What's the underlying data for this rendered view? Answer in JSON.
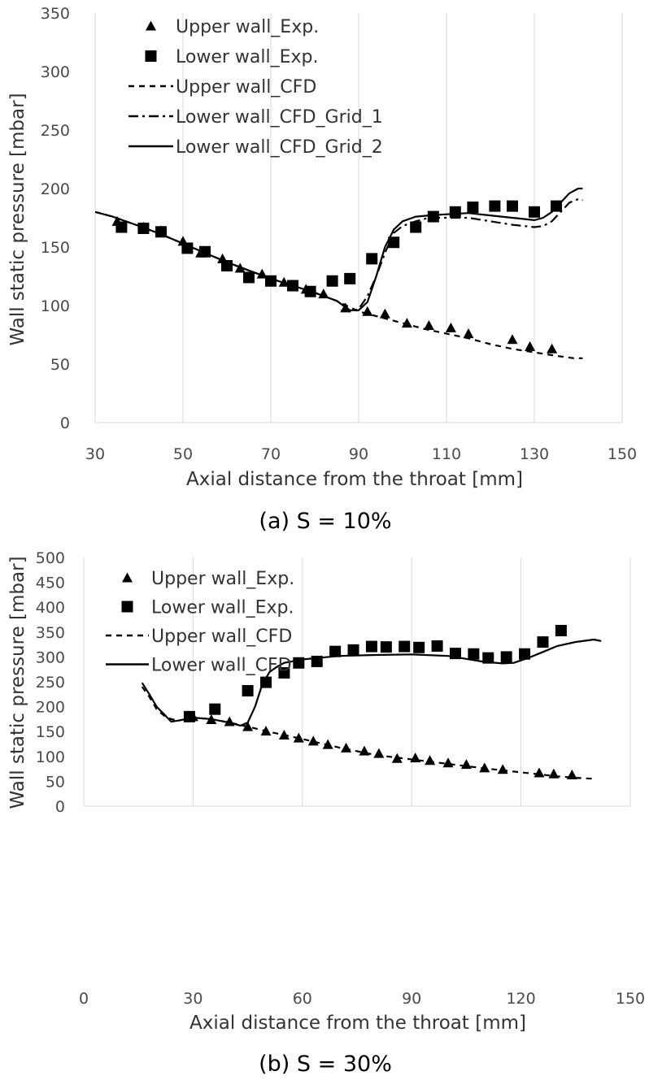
{
  "chart_data": [
    {
      "type": "scatter",
      "caption": "(a) S = 10%",
      "xlabel": "Axial distance from the throat [mm]",
      "ylabel": "Wall static pressure [mbar]",
      "xlim": [
        30,
        150
      ],
      "ylim": [
        0,
        350
      ],
      "xticks": [
        30,
        50,
        70,
        90,
        110,
        130,
        150
      ],
      "yticks": [
        0,
        50,
        100,
        150,
        200,
        250,
        300,
        350
      ],
      "grid": "vertical",
      "legend": "top-left",
      "series": [
        {
          "name": "Upper wall_Exp.",
          "style": "triangle",
          "color": "#000000",
          "x": [
            35,
            41,
            45,
            50,
            54,
            59,
            63,
            68,
            73,
            78,
            82,
            87,
            92,
            96,
            101,
            106,
            111,
            115,
            125,
            129,
            134
          ],
          "y": [
            172,
            167,
            164,
            155,
            145,
            140,
            132,
            127,
            120,
            114,
            110,
            98,
            95,
            93,
            85,
            83,
            81,
            76,
            71,
            65,
            63
          ]
        },
        {
          "name": "Lower wall_Exp.",
          "style": "square",
          "color": "#000000",
          "x": [
            36,
            41,
            45,
            51,
            55,
            60,
            65,
            70,
            75,
            79,
            84,
            88,
            93,
            98,
            103,
            107,
            112,
            116,
            121,
            125,
            130,
            135
          ],
          "y": [
            167,
            166,
            163,
            149,
            146,
            134,
            124,
            121,
            117,
            112,
            121,
            123,
            140,
            154,
            167,
            176,
            180,
            184,
            185,
            185,
            180,
            185
          ]
        },
        {
          "name": "Upper wall_CFD",
          "style": "dashed",
          "color": "#000000",
          "x": [
            30,
            34,
            40,
            45,
            50,
            55,
            60,
            65,
            70,
            75,
            80,
            85,
            90,
            95,
            100,
            105,
            110,
            115,
            120,
            125,
            130,
            135,
            139,
            141
          ],
          "y": [
            180,
            176,
            168,
            161,
            153,
            145,
            137,
            130,
            123,
            117,
            111,
            104,
            95,
            90,
            85,
            80,
            76,
            72,
            67,
            63,
            60,
            57,
            55,
            55
          ]
        },
        {
          "name": "Lower wall_CFD_Grid_1",
          "style": "dashdot",
          "color": "#000000",
          "x": [
            86,
            88,
            90,
            92,
            94,
            96,
            98,
            100,
            103,
            106,
            110,
            115,
            120,
            125,
            130,
            132,
            134,
            136,
            138,
            140,
            141
          ],
          "y": [
            96,
            95,
            97,
            108,
            125,
            145,
            162,
            168,
            172,
            175,
            175,
            175,
            172,
            169,
            167,
            168,
            172,
            180,
            188,
            191,
            190
          ]
        },
        {
          "name": "Lower wall_CFD_Grid_2",
          "style": "solid",
          "color": "#000000",
          "x": [
            30,
            34,
            40,
            45,
            50,
            55,
            60,
            65,
            70,
            75,
            80,
            85,
            88,
            90,
            92,
            94,
            96,
            98,
            100,
            103,
            106,
            110,
            115,
            120,
            125,
            130,
            132,
            134,
            136,
            138,
            140,
            141
          ],
          "y": [
            180,
            176,
            168,
            161,
            153,
            145,
            137,
            130,
            123,
            117,
            111,
            104,
            96,
            96,
            103,
            125,
            150,
            165,
            172,
            176,
            177,
            178,
            179,
            177,
            175,
            173,
            175,
            180,
            188,
            196,
            200,
            200
          ]
        }
      ]
    },
    {
      "type": "scatter",
      "caption": "(b) S = 30%",
      "xlabel": "Axial distance from the throat [mm]",
      "ylabel": "Wall static pressure [mbar]",
      "xlim": [
        0,
        150
      ],
      "ylim": [
        0,
        500
      ],
      "xticks": [
        0,
        30,
        60,
        90,
        120,
        150
      ],
      "yticks": [
        0,
        50,
        100,
        150,
        200,
        250,
        300,
        350,
        400,
        450,
        500
      ],
      "grid": "vertical",
      "legend": "top-left",
      "series": [
        {
          "name": "Upper wall_Exp.",
          "style": "triangle",
          "color": "#000000",
          "x": [
            30,
            35,
            40,
            45,
            50,
            55,
            59,
            63,
            67,
            72,
            77,
            81,
            86,
            91,
            95,
            100,
            105,
            110,
            115,
            125,
            129,
            134
          ],
          "y": [
            180,
            174,
            170,
            160,
            151,
            143,
            137,
            131,
            124,
            117,
            111,
            106,
            96,
            97,
            92,
            87,
            84,
            77,
            74,
            67,
            65,
            63
          ]
        },
        {
          "name": "Lower wall_Exp.",
          "style": "square",
          "color": "#000000",
          "x": [
            29,
            36,
            45,
            50,
            55,
            59,
            64,
            69,
            74,
            79,
            83,
            88,
            92,
            97,
            102,
            107,
            111,
            116,
            121,
            126,
            131
          ],
          "y": [
            180,
            195,
            232,
            249,
            268,
            288,
            291,
            311,
            314,
            321,
            320,
            321,
            319,
            322,
            307,
            306,
            298,
            300,
            306,
            330,
            353
          ]
        },
        {
          "name": "Upper wall_CFD",
          "style": "dashed",
          "color": "#000000",
          "x": [
            16,
            18,
            20,
            22,
            24,
            26,
            30,
            35,
            40,
            45,
            50,
            55,
            60,
            70,
            80,
            90,
            100,
            110,
            120,
            130,
            135,
            140
          ],
          "y": [
            240,
            220,
            195,
            182,
            175,
            172,
            178,
            175,
            168,
            160,
            151,
            143,
            135,
            118,
            103,
            94,
            85,
            76,
            68,
            60,
            57,
            55
          ]
        },
        {
          "name": "Lower wall_CFD",
          "style": "solid",
          "color": "#000000",
          "x": [
            16,
            18,
            20,
            22,
            24,
            26,
            28,
            30,
            35,
            40,
            43,
            45,
            47,
            49,
            51,
            53,
            55,
            60,
            70,
            80,
            90,
            100,
            105,
            110,
            115,
            118,
            122,
            126,
            130,
            135,
            140,
            142
          ],
          "y": [
            248,
            225,
            200,
            185,
            170,
            172,
            175,
            178,
            175,
            168,
            162,
            168,
            200,
            245,
            270,
            280,
            288,
            295,
            302,
            304,
            305,
            302,
            296,
            290,
            287,
            288,
            298,
            310,
            322,
            330,
            335,
            332
          ]
        }
      ]
    }
  ]
}
